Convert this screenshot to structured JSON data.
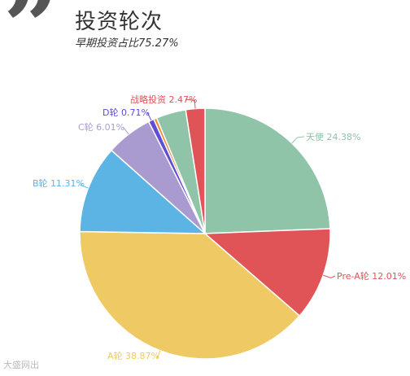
{
  "header": {
    "title": "投资轮次",
    "subtitle": "早期投资占比75.27%"
  },
  "watermark": "大盛网出",
  "chart_data": {
    "type": "pie",
    "title": "投资轮次",
    "subtitle": "早期投资占比75.27%",
    "slices": [
      {
        "name": "天使",
        "value": 24.38,
        "label": "天使 24.38%",
        "color": "#8fc4a8"
      },
      {
        "name": "Pre-A轮",
        "value": 12.01,
        "label": "Pre-A轮 12.01%",
        "color": "#e05357"
      },
      {
        "name": "A轮",
        "value": 38.87,
        "label": "A轮 38.87%",
        "color": "#efc963"
      },
      {
        "name": "B轮",
        "value": 11.31,
        "label": "B轮 11.31%",
        "color": "#5cb4e4"
      },
      {
        "name": "C轮",
        "value": 6.01,
        "label": "C轮 6.01%",
        "color": "#a99bd0"
      },
      {
        "name": "D轮",
        "value": 0.71,
        "label": "D轮 0.71%",
        "color": "#5c4fd6"
      },
      {
        "name": "",
        "value": 0.4,
        "label": "",
        "color": "#f08a3c"
      },
      {
        "name": "",
        "value": 3.84,
        "label": "",
        "color": "#8fc4a8"
      },
      {
        "name": "战略投资",
        "value": 2.47,
        "label": "战略投资 2.47%",
        "color": "#e05357"
      }
    ]
  }
}
